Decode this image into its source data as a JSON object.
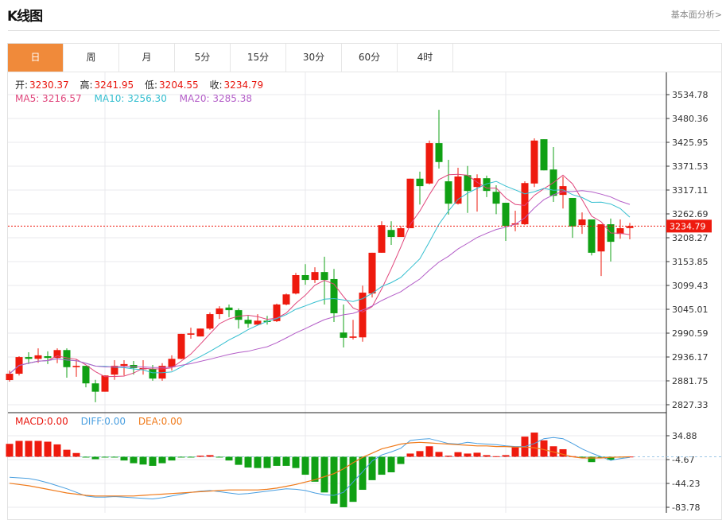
{
  "header": {
    "title": "K线图",
    "link": "基本面分析>"
  },
  "tabs": [
    {
      "label": "日",
      "active": true
    },
    {
      "label": "周"
    },
    {
      "label": "月"
    },
    {
      "label": "5分"
    },
    {
      "label": "15分"
    },
    {
      "label": "30分"
    },
    {
      "label": "60分"
    },
    {
      "label": "4时"
    }
  ],
  "ohlc_info": {
    "open_label": "开:",
    "open": "3230.37",
    "high_label": "高:",
    "high": "3241.95",
    "low_label": "低:",
    "low": "3204.55",
    "close_label": "收:",
    "close": "3234.79"
  },
  "ma_info": {
    "ma5": "MA5: 3216.57",
    "ma10": "MA10: 3256.30",
    "ma20": "MA20: 3285.38"
  },
  "macd_info": {
    "macd": "MACD:0.00",
    "diff": "DIFF:0.00",
    "dea": "DEA:0.00"
  },
  "colors": {
    "up": "#ee1a0e",
    "down": "#10a014",
    "ma5": "#e0457b",
    "ma10": "#35bfd0",
    "ma20": "#b45ec8",
    "diff": "#4a9fe0",
    "dea": "#f07a1a",
    "accent": "#f08a3a"
  },
  "chart_data": [
    {
      "type": "candlestick",
      "yticks": [
        "3534.78",
        "3480.36",
        "3425.95",
        "3371.53",
        "3317.11",
        "3262.69",
        "3208.27",
        "3153.85",
        "3099.43",
        "3045.01",
        "2990.59",
        "2936.17",
        "2881.75",
        "2827.33"
      ],
      "ylim": [
        2827.33,
        3534.78
      ],
      "last_price": "3234.79",
      "grid": true,
      "candles": [
        [
          2883.5,
          2905,
          2880,
          2898
        ],
        [
          2898,
          2938,
          2894,
          2936
        ],
        [
          2936,
          2947,
          2920,
          2932
        ],
        [
          2932,
          2956,
          2923,
          2940
        ],
        [
          2938,
          2949,
          2920,
          2934
        ],
        [
          2934,
          2956,
          2922,
          2952
        ],
        [
          2952,
          2956,
          2889,
          2913
        ],
        [
          2913,
          2931,
          2891,
          2916
        ],
        [
          2916,
          2916,
          2867,
          2876
        ],
        [
          2876,
          2884,
          2833,
          2857
        ],
        [
          2857,
          2894,
          2857,
          2894
        ],
        [
          2896,
          2929,
          2884,
          2916
        ],
        [
          2916,
          2929,
          2894,
          2920
        ],
        [
          2918,
          2927,
          2896,
          2911
        ],
        [
          2909,
          2929,
          2896,
          2911
        ],
        [
          2909,
          2918,
          2882,
          2887
        ],
        [
          2887,
          2922,
          2882,
          2916
        ],
        [
          2913,
          2940,
          2905,
          2932
        ],
        [
          2932,
          2989,
          2931,
          2989
        ],
        [
          2987,
          3003,
          2978,
          2990
        ],
        [
          2983,
          3001,
          2983,
          3001
        ],
        [
          3001,
          3038,
          2998,
          3034
        ],
        [
          3034,
          3052,
          3023,
          3047
        ],
        [
          3049,
          3056,
          3027,
          3043
        ],
        [
          3043,
          3047,
          3001,
          3021
        ],
        [
          3021,
          3030,
          3003,
          3012
        ],
        [
          3010,
          3034,
          3009,
          3019
        ],
        [
          3019,
          3030,
          3010,
          3016
        ],
        [
          3018,
          3058,
          3016,
          3056
        ],
        [
          3056,
          3081,
          3054,
          3079
        ],
        [
          3081,
          3128,
          3079,
          3123
        ],
        [
          3123,
          3148,
          3101,
          3112
        ],
        [
          3112,
          3141,
          3105,
          3130
        ],
        [
          3130,
          3165,
          3056,
          3112
        ],
        [
          3114,
          3137,
          3016,
          3036
        ],
        [
          2992,
          3056,
          2958,
          2980
        ],
        [
          2980,
          3021,
          2976,
          2983
        ],
        [
          2981,
          3099,
          2971,
          3083
        ],
        [
          3081,
          3174,
          3072,
          3174
        ],
        [
          3174,
          3246,
          3174,
          3237
        ],
        [
          3226,
          3246,
          3192,
          3210
        ],
        [
          3210,
          3235,
          3210,
          3230
        ],
        [
          3230,
          3343,
          3230,
          3343
        ],
        [
          3343,
          3359,
          3284,
          3326
        ],
        [
          3332,
          3430,
          3330,
          3424
        ],
        [
          3424,
          3500,
          3366,
          3381
        ],
        [
          3337,
          3386,
          3261,
          3286
        ],
        [
          3286,
          3368,
          3284,
          3348
        ],
        [
          3351,
          3372,
          3265,
          3315
        ],
        [
          3324,
          3353,
          3268,
          3344
        ],
        [
          3344,
          3350,
          3301,
          3315
        ],
        [
          3313,
          3328,
          3262,
          3286
        ],
        [
          3288,
          3288,
          3201,
          3235
        ],
        [
          3239,
          3270,
          3223,
          3241
        ],
        [
          3239,
          3337,
          3237,
          3333
        ],
        [
          3332,
          3435,
          3324,
          3430
        ],
        [
          3433,
          3433,
          3362,
          3362
        ],
        [
          3364,
          3415,
          3290,
          3304
        ],
        [
          3306,
          3348,
          3275,
          3326
        ],
        [
          3299,
          3299,
          3208,
          3234
        ],
        [
          3237,
          3266,
          3217,
          3250
        ],
        [
          3250,
          3250,
          3168,
          3174
        ],
        [
          3177,
          3239,
          3121,
          3239
        ],
        [
          3239,
          3252,
          3154,
          3199
        ],
        [
          3217,
          3250,
          3206,
          3230
        ],
        [
          3230.37,
          3241.95,
          3204.55,
          3234.79
        ]
      ]
    },
    {
      "type": "bar+line",
      "yticks": [
        "34.88",
        "-4.67",
        "-44.23",
        "-83.78"
      ],
      "ylim": [
        -83.78,
        34.88
      ],
      "macd": [
        21.4,
        26.3,
        26.3,
        26.3,
        25,
        20.5,
        11.6,
        6.2,
        -1.3,
        -4,
        -0.9,
        -1.3,
        -6.2,
        -10.7,
        -12.9,
        -15.1,
        -10.7,
        -6.2,
        -0.3,
        -0.3,
        1.8,
        2.7,
        -0.3,
        -6.2,
        -13.4,
        -17.8,
        -18.7,
        -18.7,
        -15.1,
        -15.1,
        -18.7,
        -29.8,
        -41.4,
        -59.2,
        -78,
        -83.7,
        -74.8,
        -54.8,
        -38.8,
        -29.8,
        -25.8,
        -12,
        5.3,
        9.4,
        17.4,
        8,
        1.8,
        7.6,
        5.3,
        6.7,
        2.7,
        0.9,
        2.7,
        15.6,
        33.4,
        40.1,
        27.2,
        17.4,
        12.5,
        0.9,
        -1.3,
        -8.9,
        -1.3,
        -5.3,
        -0.5,
        0.3
      ],
      "diff": [
        -34,
        -35,
        -36,
        -39,
        -43,
        -48,
        -53,
        -59,
        -65,
        -67,
        -67,
        -66,
        -67,
        -68,
        -69,
        -70,
        -68,
        -65,
        -62,
        -59,
        -57,
        -56,
        -58,
        -60,
        -62,
        -61,
        -59,
        -57,
        -55,
        -53,
        -54,
        -56,
        -60,
        -63,
        -64,
        -59,
        -42,
        -25,
        -7,
        3,
        8,
        14,
        27,
        29,
        30,
        26,
        22,
        21,
        24,
        22,
        21,
        20,
        18,
        17,
        17,
        22,
        30,
        32,
        30,
        22,
        13,
        6,
        0,
        -6,
        -3,
        -1
      ],
      "dea": [
        -44,
        -46,
        -48,
        -51,
        -54,
        -57,
        -60,
        -62,
        -64,
        -65,
        -65,
        -65,
        -65,
        -65,
        -64,
        -63,
        -62,
        -61,
        -60,
        -59,
        -58,
        -57,
        -56,
        -55,
        -55,
        -55,
        -55,
        -54,
        -52,
        -49,
        -46,
        -42,
        -38,
        -33,
        -28,
        -20,
        -10,
        -1,
        6,
        13,
        17,
        21,
        23,
        24,
        23,
        22,
        21,
        20,
        19,
        18,
        18,
        17,
        17,
        16,
        16,
        15,
        12,
        8,
        4,
        0,
        -2,
        -2,
        -2,
        -1,
        -0.5,
        0
      ]
    }
  ]
}
